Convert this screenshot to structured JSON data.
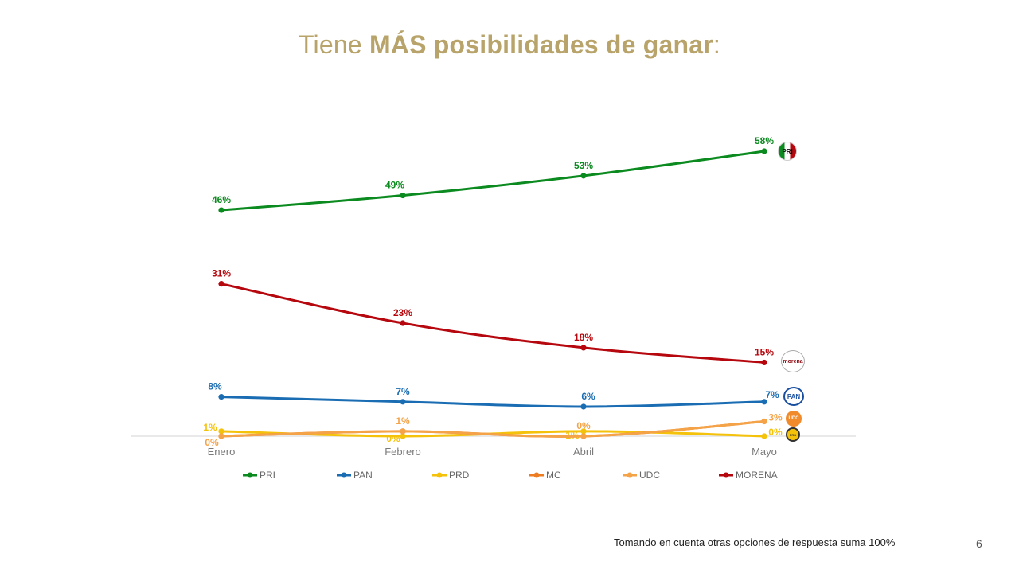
{
  "title": {
    "prefix": "Tiene ",
    "bold": "MÁS posibilidades  de ganar",
    "suffix": ":"
  },
  "footnote": "Tomando en cuenta otras opciones de respuesta suma 100%",
  "page_number": "6",
  "logos": {
    "PRI": "PRI",
    "MORENA": "morena",
    "PAN": "PAN",
    "UDC": "UDC",
    "PRD": "PRD"
  },
  "chart_data": {
    "type": "line",
    "categories": [
      "Enero",
      "Febrero",
      "Abril",
      "Mayo"
    ],
    "ylim": [
      0,
      60
    ],
    "grid": false,
    "legend_position": "bottom",
    "value_format": "{v}%",
    "series": [
      {
        "name": "PRI",
        "color": "#0b8a1f",
        "values": [
          46,
          49,
          53,
          58
        ]
      },
      {
        "name": "PAN",
        "color": "#1a6db3",
        "values": [
          8,
          7,
          6,
          7
        ]
      },
      {
        "name": "PRD",
        "color": "#f5c20b",
        "values": [
          1,
          0,
          1,
          0
        ]
      },
      {
        "name": "MC",
        "color": "#ee7d22",
        "values": [
          0,
          1,
          0,
          3
        ]
      },
      {
        "name": "UDC",
        "color": "#f4a348",
        "values": [
          0,
          1,
          0,
          3
        ]
      },
      {
        "name": "MORENA",
        "color": "#b5070d",
        "values": [
          31,
          23,
          18,
          15
        ]
      }
    ]
  }
}
